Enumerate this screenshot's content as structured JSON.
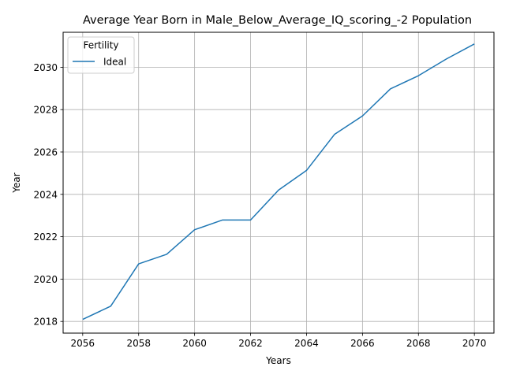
{
  "chart_data": {
    "type": "line",
    "title": "Average Year Born in Male_Below_Average_IQ_scoring_-2 Population",
    "xlabel": "Years",
    "ylabel": "Year",
    "xlim": [
      2055.3,
      2070.7
    ],
    "ylim": [
      2017.45,
      2031.65
    ],
    "xticks": [
      2056,
      2058,
      2060,
      2062,
      2064,
      2066,
      2068,
      2070
    ],
    "yticks": [
      2018,
      2020,
      2022,
      2024,
      2026,
      2028,
      2030
    ],
    "grid": true,
    "legend": {
      "title": "Fertility",
      "placement": "top-left"
    },
    "x": [
      2056,
      2057,
      2058,
      2059,
      2060,
      2061,
      2062,
      2063,
      2064,
      2065,
      2066,
      2067,
      2068,
      2069,
      2070
    ],
    "series": [
      {
        "name": "Ideal",
        "color": "#1f77b4",
        "values": [
          2018.1,
          2018.72,
          2020.72,
          2021.17,
          2022.33,
          2022.79,
          2022.79,
          2024.2,
          2025.13,
          2026.83,
          2027.7,
          2028.98,
          2029.6,
          2030.39,
          2031.1
        ]
      }
    ]
  }
}
